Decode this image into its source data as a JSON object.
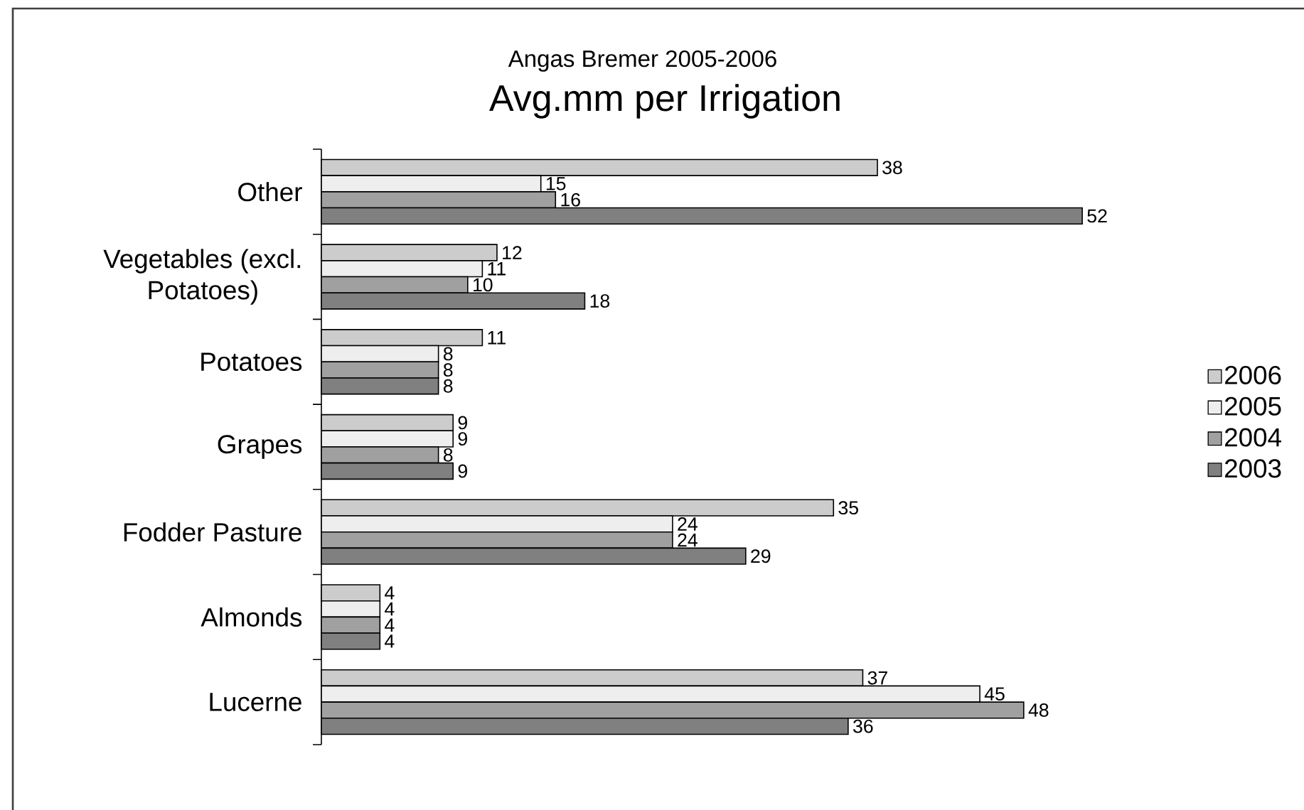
{
  "chart_data": {
    "type": "bar",
    "orientation": "horizontal",
    "subtitle": "Angas Bremer 2005-2006",
    "title": "Avg.mm per Irrigation",
    "categories": [
      "Other",
      "Vegetables (excl. Potatoes)",
      "Potatoes",
      "Grapes",
      "Fodder Pasture",
      "Almonds",
      "Lucerne"
    ],
    "series": [
      {
        "name": "2006",
        "color": "#cccccc",
        "values": [
          38,
          12,
          11,
          9,
          35,
          4,
          37
        ]
      },
      {
        "name": "2005",
        "color": "#eeeeee",
        "values": [
          15,
          11,
          8,
          9,
          24,
          4,
          45
        ]
      },
      {
        "name": "2004",
        "color": "#a0a0a0",
        "values": [
          16,
          10,
          8,
          8,
          24,
          4,
          48
        ]
      },
      {
        "name": "2003",
        "color": "#808080",
        "values": [
          52,
          18,
          8,
          9,
          29,
          4,
          36
        ]
      }
    ],
    "data_labels": true,
    "legend": "right"
  }
}
